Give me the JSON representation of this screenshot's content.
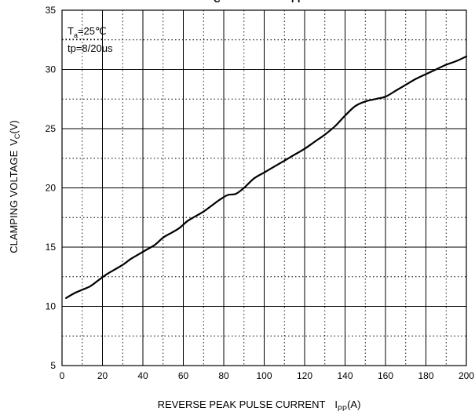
{
  "chart_data": {
    "type": "line",
    "title_fragment_1": "C",
    "title_fragment_2": "PP",
    "xlabel": "REVERSE PEAK PULSE CURRENT",
    "xlabel_symbol": "I",
    "xlabel_symbol_sub": "PP",
    "xlabel_unit": "(A)",
    "ylabel": "CLAMPING VOLTAGE",
    "ylabel_symbol": "V",
    "ylabel_symbol_sub": "C",
    "ylabel_unit": "(V)",
    "xlim": [
      0,
      200
    ],
    "ylim": [
      5,
      35
    ],
    "xticks": [
      0,
      20,
      40,
      60,
      80,
      100,
      120,
      140,
      160,
      180,
      200
    ],
    "yticks": [
      5,
      10,
      15,
      20,
      25,
      30,
      35
    ],
    "xticks_labels": [
      "0",
      "20",
      "40",
      "60",
      "80",
      "100",
      "120",
      "140",
      "160",
      "180",
      "200"
    ],
    "yticks_labels": [
      "5",
      "10",
      "15",
      "20",
      "25",
      "30",
      "35"
    ],
    "grid": "major solid, minor dotted",
    "annotations": {
      "ta_prefix": "T",
      "ta_sub": "a",
      "ta_value": "=25℃",
      "tp": "tp=8/20us"
    },
    "series": [
      {
        "color": "#000000",
        "points": [
          [
            2,
            10.7
          ],
          [
            6,
            11.1
          ],
          [
            10,
            11.4
          ],
          [
            14,
            11.7
          ],
          [
            18,
            12.2
          ],
          [
            22,
            12.7
          ],
          [
            26,
            13.1
          ],
          [
            30,
            13.5
          ],
          [
            34,
            14.0
          ],
          [
            38,
            14.4
          ],
          [
            42,
            14.8
          ],
          [
            46,
            15.2
          ],
          [
            50,
            15.8
          ],
          [
            54,
            16.2
          ],
          [
            58,
            16.6
          ],
          [
            62,
            17.2
          ],
          [
            66,
            17.6
          ],
          [
            70,
            18.0
          ],
          [
            74,
            18.5
          ],
          [
            78,
            19.0
          ],
          [
            82,
            19.4
          ],
          [
            86,
            19.5
          ],
          [
            90,
            20.0
          ],
          [
            95,
            20.8
          ],
          [
            100,
            21.3
          ],
          [
            105,
            21.8
          ],
          [
            110,
            22.3
          ],
          [
            115,
            22.8
          ],
          [
            120,
            23.3
          ],
          [
            125,
            23.9
          ],
          [
            130,
            24.5
          ],
          [
            135,
            25.2
          ],
          [
            140,
            26.1
          ],
          [
            145,
            26.9
          ],
          [
            150,
            27.3
          ],
          [
            155,
            27.5
          ],
          [
            160,
            27.7
          ],
          [
            165,
            28.2
          ],
          [
            170,
            28.7
          ],
          [
            175,
            29.2
          ],
          [
            180,
            29.6
          ],
          [
            185,
            30.0
          ],
          [
            190,
            30.4
          ],
          [
            195,
            30.7
          ],
          [
            200,
            31.1
          ]
        ]
      }
    ]
  }
}
